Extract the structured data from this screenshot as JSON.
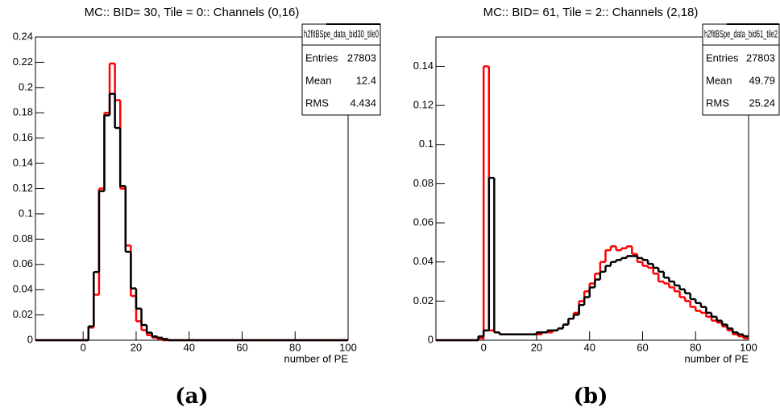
{
  "chart_data": [
    {
      "type": "histogram",
      "title": "MC::   BID= 30, Tile = 0:: Channels (0,16)",
      "x_label": "number of PE",
      "caption": "(a)",
      "bins": [
        -18,
        -16,
        -14,
        -12,
        -10,
        -8,
        -6,
        -4,
        -2,
        0,
        2,
        4,
        6,
        8,
        10,
        12,
        14,
        16,
        18,
        20,
        22,
        24,
        26,
        28,
        30,
        32,
        34,
        36,
        38,
        40,
        42,
        44,
        46,
        48,
        50,
        52,
        54,
        56,
        58,
        60,
        62,
        64,
        66,
        68,
        70,
        72,
        74,
        76,
        78,
        80,
        82,
        84,
        86,
        88,
        90,
        92,
        94,
        96,
        98,
        100
      ],
      "series": [
        {
          "color": "#ff0000",
          "values": [
            0,
            0,
            0,
            0,
            0,
            0,
            0,
            0,
            0,
            0,
            0.01,
            0.036,
            0.12,
            0.18,
            0.219,
            0.19,
            0.12,
            0.075,
            0.035,
            0.015,
            0.008,
            0.004,
            0.002,
            0.001,
            0,
            0,
            0,
            0,
            0,
            0,
            0,
            0,
            0,
            0,
            0,
            0,
            0,
            0,
            0,
            0,
            0,
            0,
            0,
            0,
            0,
            0,
            0,
            0,
            0,
            0,
            0,
            0,
            0,
            0,
            0,
            0,
            0,
            0,
            0
          ]
        },
        {
          "color": "#000000",
          "values": [
            0,
            0,
            0,
            0,
            0,
            0,
            0,
            0,
            0,
            0,
            0.011,
            0.054,
            0.118,
            0.178,
            0.195,
            0.168,
            0.122,
            0.07,
            0.041,
            0.025,
            0.012,
            0.006,
            0.003,
            0.002,
            0.001,
            0,
            0,
            0,
            0,
            0,
            0,
            0,
            0,
            0,
            0,
            0,
            0,
            0,
            0,
            0,
            0,
            0,
            0,
            0,
            0,
            0,
            0,
            0,
            0,
            0,
            0,
            0,
            0,
            0,
            0,
            0,
            0,
            0,
            0
          ]
        }
      ],
      "xlim": [
        -18,
        100
      ],
      "xticks": [
        0,
        20,
        40,
        60,
        80,
        100
      ],
      "ylim": [
        0,
        0.24
      ],
      "yticks": [
        0,
        0.02,
        0.04,
        0.06,
        0.08,
        0.1,
        0.12,
        0.14,
        0.16,
        0.18,
        0.2,
        0.22,
        0.24
      ],
      "stats": {
        "name": "h2fitBSpe_data_bid30_tile0",
        "rows": [
          [
            "Entries",
            "27803"
          ],
          [
            "Mean",
            "12.4"
          ],
          [
            "RMS",
            "4.434"
          ]
        ]
      }
    },
    {
      "type": "histogram",
      "title": "MC::   BID= 61, Tile = 2:: Channels (2,18)",
      "x_label": "number of PE",
      "caption": "(b)",
      "bins": [
        -18,
        -16,
        -14,
        -12,
        -10,
        -8,
        -6,
        -4,
        -2,
        0,
        2,
        4,
        6,
        8,
        10,
        12,
        14,
        16,
        18,
        20,
        22,
        24,
        26,
        28,
        30,
        32,
        34,
        36,
        38,
        40,
        42,
        44,
        46,
        48,
        50,
        52,
        54,
        56,
        58,
        60,
        62,
        64,
        66,
        68,
        70,
        72,
        74,
        76,
        78,
        80,
        82,
        84,
        86,
        88,
        90,
        92,
        94,
        96,
        98,
        100
      ],
      "series": [
        {
          "color": "#ff0000",
          "values": [
            0,
            0,
            0,
            0,
            0,
            0,
            0,
            0,
            0.001,
            0.14,
            0.005,
            0.004,
            0.003,
            0.003,
            0.003,
            0.003,
            0.003,
            0.003,
            0.003,
            0.003,
            0.004,
            0.004,
            0.005,
            0.006,
            0.008,
            0.011,
            0.014,
            0.02,
            0.025,
            0.029,
            0.034,
            0.04,
            0.046,
            0.048,
            0.046,
            0.047,
            0.048,
            0.044,
            0.04,
            0.038,
            0.037,
            0.034,
            0.03,
            0.029,
            0.027,
            0.025,
            0.022,
            0.02,
            0.017,
            0.015,
            0.014,
            0.012,
            0.01,
            0.009,
            0.007,
            0.005,
            0.003,
            0.002,
            0.001
          ]
        },
        {
          "color": "#000000",
          "values": [
            0,
            0,
            0,
            0,
            0,
            0,
            0,
            0,
            0.002,
            0.005,
            0.083,
            0.004,
            0.003,
            0.003,
            0.003,
            0.003,
            0.003,
            0.003,
            0.003,
            0.004,
            0.004,
            0.005,
            0.005,
            0.006,
            0.008,
            0.011,
            0.013,
            0.018,
            0.022,
            0.027,
            0.031,
            0.035,
            0.038,
            0.04,
            0.041,
            0.042,
            0.043,
            0.043,
            0.042,
            0.041,
            0.039,
            0.037,
            0.035,
            0.032,
            0.03,
            0.028,
            0.026,
            0.024,
            0.021,
            0.019,
            0.017,
            0.014,
            0.012,
            0.01,
            0.008,
            0.006,
            0.004,
            0.003,
            0.002
          ]
        }
      ],
      "xlim": [
        -18,
        100
      ],
      "xticks": [
        0,
        20,
        40,
        60,
        80,
        100
      ],
      "ylim": [
        0,
        0.155
      ],
      "yticks": [
        0,
        0.02,
        0.04,
        0.06,
        0.08,
        0.1,
        0.12,
        0.14
      ],
      "stats": {
        "name": "h2fitBSpe_data_bid61_tile2",
        "rows": [
          [
            "Entries",
            "27803"
          ],
          [
            "Mean",
            "49.79"
          ],
          [
            "RMS",
            "25.24"
          ]
        ]
      }
    }
  ]
}
